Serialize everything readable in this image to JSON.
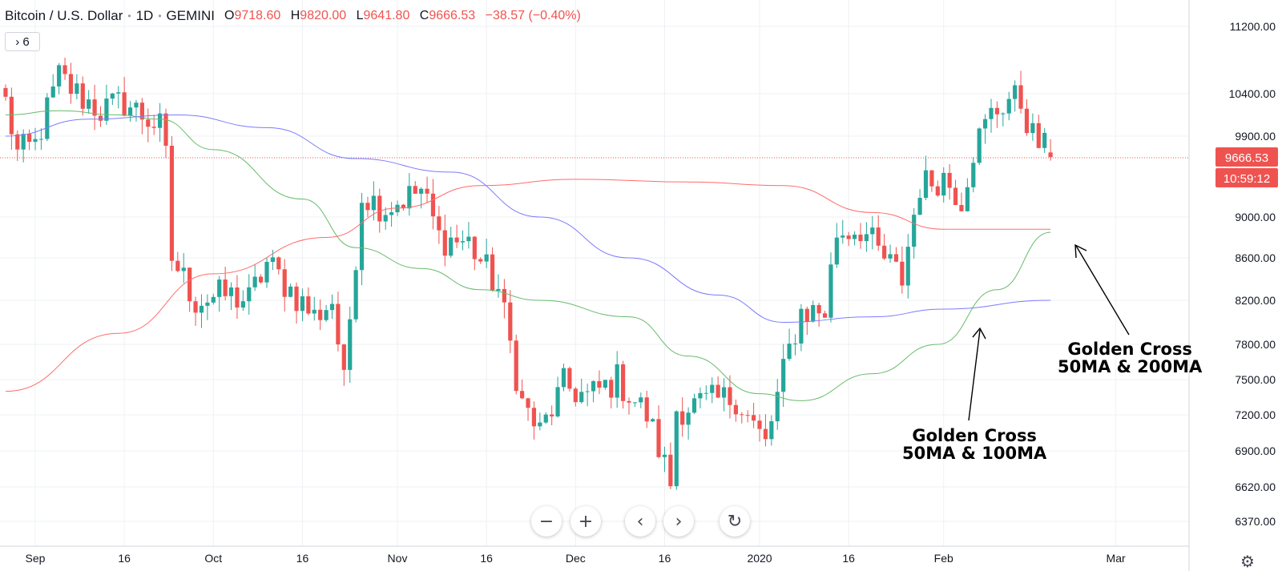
{
  "header": {
    "title": "Bitcoin / U.S. Dollar",
    "interval": "1D",
    "exchange": "GEMINI",
    "open_label": "O",
    "open": "9718.60",
    "high_label": "H",
    "high": "9820.00",
    "low_label": "L",
    "low": "9641.80",
    "close_label": "C",
    "close": "9666.53",
    "change": "−38.57 (−0.40%)"
  },
  "indicators_button": "› 6",
  "nav_buttons": {
    "zoom_out": "−",
    "zoom_in": "+",
    "scroll_left": "‹",
    "scroll_right": "›",
    "reset": "↻"
  },
  "price_badge": "9666.53",
  "timer_badge": "10:59:12",
  "annotations": {
    "cross_100": [
      "Golden Cross",
      "50MA & 100MA"
    ],
    "cross_200": [
      "Golden Cross",
      "50MA & 200MA"
    ]
  },
  "colors": {
    "up": "#26a69a",
    "down": "#ef5350",
    "ma50": "#66bb6a",
    "ma100": "#7b7bff",
    "ma200": "#ff6b6b",
    "grid": "#eef0f3"
  },
  "chart_data": {
    "type": "candlestick",
    "y_ticks": [
      6370,
      6620,
      6900,
      7200,
      7500,
      7800,
      8200,
      8600,
      9000,
      9900,
      10400,
      11200
    ],
    "y_tick_labels": [
      "6370.00",
      "6620.00",
      "6900.00",
      "7200.00",
      "7500.00",
      "7800.00",
      "8200.00",
      "8600.00",
      "9000.00",
      "9900.00",
      "10400.00",
      "11200.00"
    ],
    "x_ticks": [
      "2019-09-01",
      "2019-09-16",
      "2019-10-01",
      "2019-10-16",
      "2019-11-01",
      "2019-11-16",
      "2019-12-01",
      "2019-12-16",
      "2020-01-01",
      "2020-01-16",
      "2020-02-01",
      "2020-03-01"
    ],
    "x_tick_labels": [
      "Sep",
      "16",
      "Oct",
      "16",
      "Nov",
      "16",
      "Dec",
      "16",
      "2020",
      "16",
      "Feb",
      "Mar"
    ],
    "last_price": 9666.53,
    "ohlc_waypoints": [
      {
        "date": "2019-08-27",
        "close": 10300
      },
      {
        "date": "2019-08-29",
        "close": 9700
      },
      {
        "date": "2019-09-01",
        "close": 9800
      },
      {
        "date": "2019-09-05",
        "close": 10600
      },
      {
        "date": "2019-09-08",
        "close": 10400
      },
      {
        "date": "2019-09-12",
        "close": 10200
      },
      {
        "date": "2019-09-16",
        "close": 10300
      },
      {
        "date": "2019-09-19",
        "close": 10150
      },
      {
        "date": "2019-09-22",
        "close": 10000
      },
      {
        "date": "2019-09-23",
        "close": 9650
      },
      {
        "date": "2019-09-24",
        "close": 8600
      },
      {
        "date": "2019-09-28",
        "close": 8200
      },
      {
        "date": "2019-10-03",
        "close": 8250
      },
      {
        "date": "2019-10-07",
        "close": 8200
      },
      {
        "date": "2019-10-10",
        "close": 8550
      },
      {
        "date": "2019-10-14",
        "close": 8300
      },
      {
        "date": "2019-10-18",
        "close": 8050
      },
      {
        "date": "2019-10-21",
        "close": 8200
      },
      {
        "date": "2019-10-23",
        "close": 7450
      },
      {
        "date": "2019-10-25",
        "close": 8650
      },
      {
        "date": "2019-10-26",
        "close": 9250
      },
      {
        "date": "2019-10-30",
        "close": 9100
      },
      {
        "date": "2019-11-05",
        "close": 9300
      },
      {
        "date": "2019-11-08",
        "close": 8800
      },
      {
        "date": "2019-11-13",
        "close": 8750
      },
      {
        "date": "2019-11-18",
        "close": 8300
      },
      {
        "date": "2019-11-22",
        "close": 7300
      },
      {
        "date": "2019-11-25",
        "close": 7050
      },
      {
        "date": "2019-11-29",
        "close": 7450
      },
      {
        "date": "2019-12-03",
        "close": 7350
      },
      {
        "date": "2019-12-08",
        "close": 7500
      },
      {
        "date": "2019-12-13",
        "close": 7200
      },
      {
        "date": "2019-12-17",
        "close": 6650
      },
      {
        "date": "2019-12-18",
        "close": 7250
      },
      {
        "date": "2019-12-23",
        "close": 7300
      },
      {
        "date": "2019-12-28",
        "close": 7350
      },
      {
        "date": "2020-01-02",
        "close": 6950
      },
      {
        "date": "2020-01-06",
        "close": 7750
      },
      {
        "date": "2020-01-08",
        "close": 8100
      },
      {
        "date": "2020-01-12",
        "close": 8100
      },
      {
        "date": "2020-01-14",
        "close": 8850
      },
      {
        "date": "2020-01-18",
        "close": 8900
      },
      {
        "date": "2020-01-21",
        "close": 8650
      },
      {
        "date": "2020-01-25",
        "close": 8400
      },
      {
        "date": "2020-01-28",
        "close": 9350
      },
      {
        "date": "2020-02-01",
        "close": 9450
      },
      {
        "date": "2020-02-04",
        "close": 9200
      },
      {
        "date": "2020-02-06",
        "close": 9750
      },
      {
        "date": "2020-02-09",
        "close": 10150
      },
      {
        "date": "2020-02-12",
        "close": 10350
      },
      {
        "date": "2020-02-14",
        "close": 10300
      },
      {
        "date": "2020-02-16",
        "close": 9900
      },
      {
        "date": "2020-02-18",
        "close": 9750
      },
      {
        "date": "2020-02-19",
        "close": 9666.53
      }
    ],
    "series": [
      {
        "name": "50MA",
        "points": [
          [
            "2019-08-27",
            10150
          ],
          [
            "2019-09-05",
            10200
          ],
          [
            "2019-09-15",
            10150
          ],
          [
            "2019-09-22",
            10100
          ],
          [
            "2019-10-01",
            9750
          ],
          [
            "2019-10-16",
            9200
          ],
          [
            "2019-10-25",
            8700
          ],
          [
            "2019-11-05",
            8500
          ],
          [
            "2019-11-15",
            8300
          ],
          [
            "2019-11-25",
            8200
          ],
          [
            "2019-12-10",
            8050
          ],
          [
            "2019-12-20",
            7700
          ],
          [
            "2020-01-01",
            7380
          ],
          [
            "2020-01-08",
            7320
          ],
          [
            "2020-01-20",
            7550
          ],
          [
            "2020-01-31",
            7800
          ],
          [
            "2020-02-10",
            8300
          ],
          [
            "2020-02-19",
            8850
          ]
        ]
      },
      {
        "name": "100MA",
        "points": [
          [
            "2019-08-27",
            9900
          ],
          [
            "2019-09-10",
            10100
          ],
          [
            "2019-09-25",
            10150
          ],
          [
            "2019-10-10",
            10000
          ],
          [
            "2019-10-25",
            9650
          ],
          [
            "2019-11-10",
            9500
          ],
          [
            "2019-11-25",
            9000
          ],
          [
            "2019-12-10",
            8600
          ],
          [
            "2019-12-25",
            8250
          ],
          [
            "2020-01-05",
            8000
          ],
          [
            "2020-01-20",
            8050
          ],
          [
            "2020-02-01",
            8120
          ],
          [
            "2020-02-19",
            8200
          ]
        ]
      },
      {
        "name": "200MA",
        "points": [
          [
            "2019-08-27",
            7400
          ],
          [
            "2019-09-15",
            7900
          ],
          [
            "2019-10-01",
            8450
          ],
          [
            "2019-10-20",
            8800
          ],
          [
            "2019-11-01",
            9100
          ],
          [
            "2019-11-15",
            9350
          ],
          [
            "2019-12-01",
            9420
          ],
          [
            "2019-12-20",
            9390
          ],
          [
            "2020-01-05",
            9350
          ],
          [
            "2020-01-20",
            9050
          ],
          [
            "2020-02-01",
            8880
          ],
          [
            "2020-02-19",
            8880
          ]
        ]
      }
    ]
  }
}
